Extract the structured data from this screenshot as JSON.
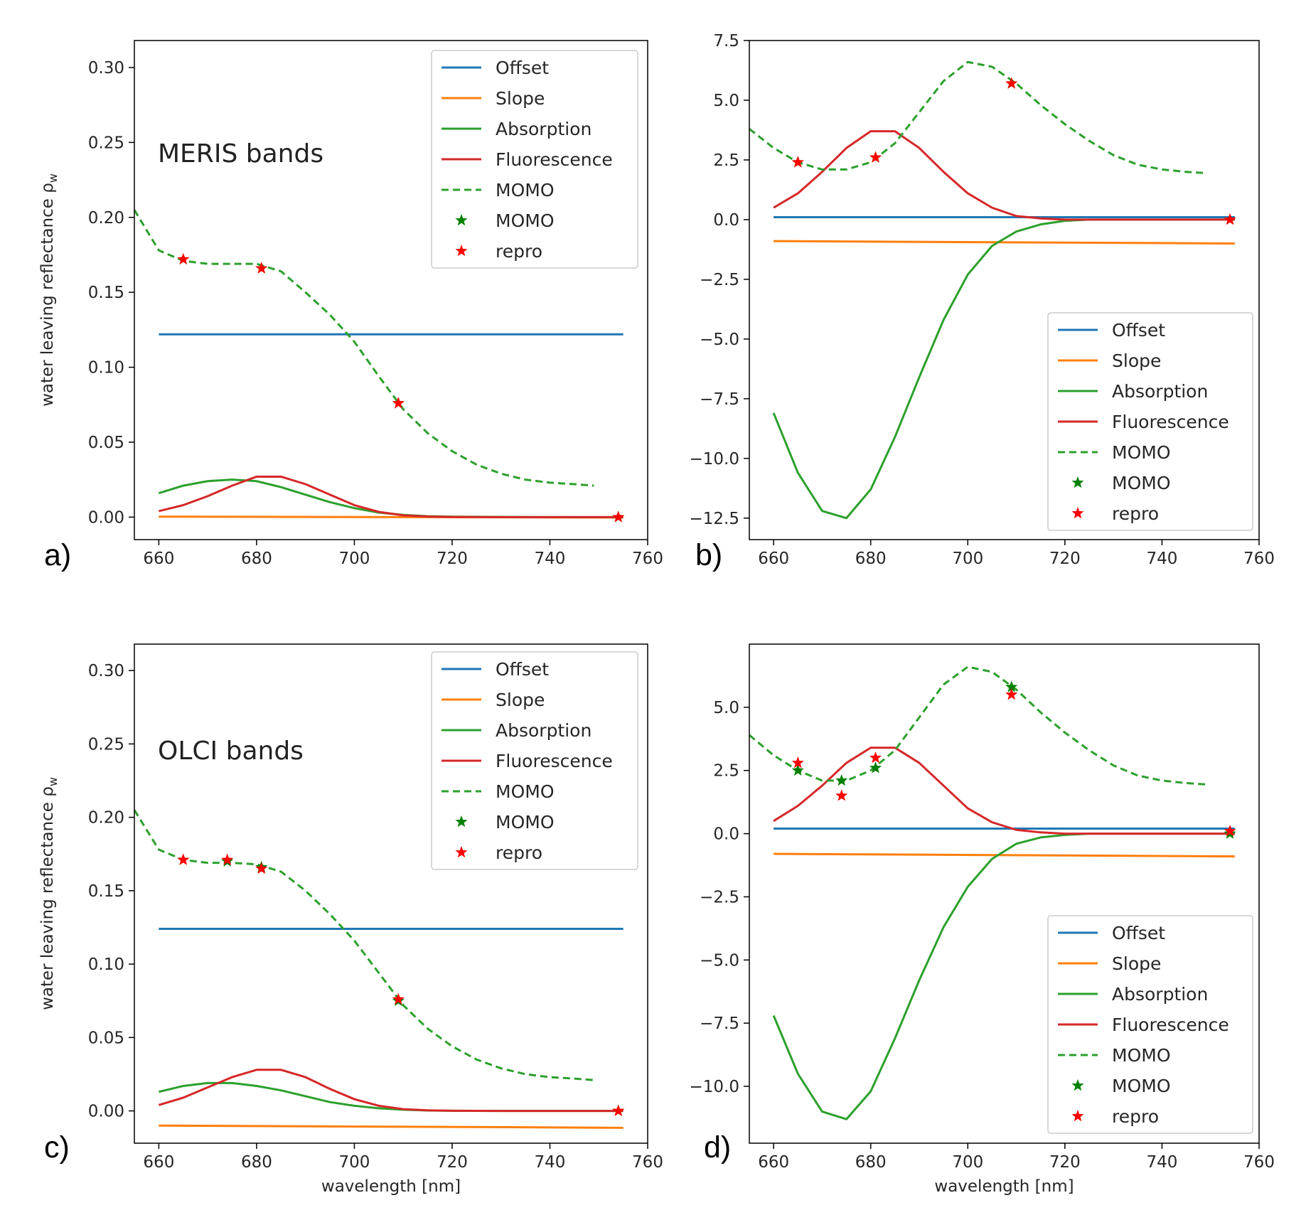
{
  "colors": {
    "offset": "#1f77b4",
    "slope": "#ff7f0e",
    "absorption": "#2ca02c",
    "fluorescence": "#d62728",
    "momo_line": "#2ca02c",
    "momo_star": "#008000",
    "repro_star": "#ff0000",
    "text": "#262626"
  },
  "chart_data": [
    {
      "id": "a",
      "type": "line",
      "panel_letter": "a)",
      "band_label": "MERIS bands",
      "xlabel": "",
      "ylabel": "water leaving reflectance ρ",
      "ylabel_sub": "w",
      "xlim": [
        655,
        760
      ],
      "ylim": [
        -0.015,
        0.318
      ],
      "xticks": [
        660,
        680,
        700,
        720,
        740,
        760
      ],
      "yticks": [
        0.0,
        0.05,
        0.1,
        0.15,
        0.2,
        0.25,
        0.3
      ],
      "ytick_labels": [
        "0.00",
        "0.05",
        "0.10",
        "0.15",
        "0.20",
        "0.25",
        "0.30"
      ],
      "legend": {
        "position": "upper right",
        "entries": [
          {
            "key": "offset",
            "label": "Offset",
            "style": "line"
          },
          {
            "key": "slope",
            "label": "Slope",
            "style": "line"
          },
          {
            "key": "absorption",
            "label": "Absorption",
            "style": "line"
          },
          {
            "key": "fluorescence",
            "label": "Fluorescence",
            "style": "line"
          },
          {
            "key": "momo_line",
            "label": "MOMO",
            "style": "dashed"
          },
          {
            "key": "momo_star",
            "label": "MOMO",
            "style": "star"
          },
          {
            "key": "repro_star",
            "label": "repro",
            "style": "star"
          }
        ]
      },
      "series": [
        {
          "key": "offset",
          "x": [
            660,
            755
          ],
          "y": [
            0.122,
            0.122
          ]
        },
        {
          "key": "slope",
          "x": [
            660,
            755
          ],
          "y": [
            0.0003,
            -0.0003
          ]
        },
        {
          "key": "absorption",
          "x": [
            660,
            665,
            670,
            675,
            680,
            685,
            690,
            695,
            700,
            705,
            710,
            715,
            720,
            730,
            740,
            755
          ],
          "y": [
            0.016,
            0.021,
            0.024,
            0.025,
            0.024,
            0.02,
            0.015,
            0.01,
            0.006,
            0.003,
            0.0015,
            0.0006,
            0.0003,
            0.0001,
            0.0,
            0.0
          ]
        },
        {
          "key": "fluorescence",
          "x": [
            660,
            665,
            670,
            675,
            680,
            685,
            690,
            695,
            700,
            705,
            710,
            715,
            720,
            730,
            740,
            755
          ],
          "y": [
            0.004,
            0.008,
            0.014,
            0.021,
            0.027,
            0.027,
            0.022,
            0.015,
            0.008,
            0.0035,
            0.0012,
            0.0004,
            0.0001,
            0.0,
            0.0,
            0.0
          ]
        },
        {
          "key": "momo_line",
          "x": [
            655,
            660,
            665,
            670,
            675,
            680,
            685,
            690,
            695,
            700,
            705,
            710,
            715,
            720,
            725,
            730,
            735,
            740,
            745,
            749
          ],
          "y": [
            0.205,
            0.178,
            0.171,
            0.169,
            0.169,
            0.169,
            0.164,
            0.15,
            0.135,
            0.117,
            0.094,
            0.072,
            0.056,
            0.044,
            0.035,
            0.029,
            0.025,
            0.023,
            0.022,
            0.021
          ]
        },
        {
          "key": "momo_star",
          "x": [
            665,
            681,
            709,
            754
          ],
          "y": [
            0.172,
            0.166,
            0.076,
            0.0
          ]
        },
        {
          "key": "repro_star",
          "x": [
            665,
            681,
            709,
            754
          ],
          "y": [
            0.172,
            0.166,
            0.076,
            0.0
          ]
        }
      ]
    },
    {
      "id": "b",
      "type": "line",
      "panel_letter": "b)",
      "band_label": "",
      "xlabel": "",
      "ylabel": "",
      "ylabel_sub": "",
      "xlim": [
        655,
        760
      ],
      "ylim": [
        -13.4,
        7.5
      ],
      "xticks": [
        660,
        680,
        700,
        720,
        740,
        760
      ],
      "yticks": [
        -12.5,
        -10.0,
        -7.5,
        -5.0,
        -2.5,
        0.0,
        2.5,
        5.0,
        7.5
      ],
      "ytick_labels": [
        "−12.5",
        "−10.0",
        "−7.5",
        "−5.0",
        "−2.5",
        "0.0",
        "2.5",
        "5.0",
        "7.5"
      ],
      "legend": {
        "position": "lower right",
        "entries": [
          {
            "key": "offset",
            "label": "Offset",
            "style": "line"
          },
          {
            "key": "slope",
            "label": "Slope",
            "style": "line"
          },
          {
            "key": "absorption",
            "label": "Absorption",
            "style": "line"
          },
          {
            "key": "fluorescence",
            "label": "Fluorescence",
            "style": "line"
          },
          {
            "key": "momo_line",
            "label": "MOMO",
            "style": "dashed"
          },
          {
            "key": "momo_star",
            "label": "MOMO",
            "style": "star"
          },
          {
            "key": "repro_star",
            "label": "repro",
            "style": "star"
          }
        ]
      },
      "series": [
        {
          "key": "offset",
          "x": [
            660,
            755
          ],
          "y": [
            0.1,
            0.1
          ]
        },
        {
          "key": "slope",
          "x": [
            660,
            755
          ],
          "y": [
            -0.9,
            -1.0
          ]
        },
        {
          "key": "absorption",
          "x": [
            660,
            665,
            670,
            675,
            680,
            685,
            690,
            695,
            700,
            705,
            710,
            715,
            720,
            725,
            730,
            740,
            755
          ],
          "y": [
            -8.1,
            -10.6,
            -12.2,
            -12.5,
            -11.3,
            -9.1,
            -6.6,
            -4.2,
            -2.3,
            -1.1,
            -0.5,
            -0.2,
            -0.05,
            0.0,
            0.0,
            0.0,
            0.0
          ]
        },
        {
          "key": "fluorescence",
          "x": [
            660,
            665,
            670,
            675,
            680,
            685,
            690,
            695,
            700,
            705,
            710,
            715,
            720,
            730,
            740,
            755
          ],
          "y": [
            0.5,
            1.1,
            2.0,
            3.0,
            3.7,
            3.7,
            3.0,
            2.0,
            1.1,
            0.5,
            0.15,
            0.05,
            0.0,
            0.0,
            0.0,
            0.0
          ]
        },
        {
          "key": "momo_line",
          "x": [
            655,
            660,
            665,
            670,
            675,
            680,
            685,
            690,
            695,
            700,
            705,
            710,
            715,
            720,
            725,
            730,
            735,
            740,
            745,
            749
          ],
          "y": [
            3.8,
            3.0,
            2.4,
            2.1,
            2.1,
            2.4,
            3.2,
            4.5,
            5.8,
            6.6,
            6.4,
            5.7,
            4.8,
            4.0,
            3.3,
            2.7,
            2.3,
            2.1,
            2.0,
            1.95
          ]
        },
        {
          "key": "momo_star",
          "x": [
            665,
            681,
            709,
            754
          ],
          "y": [
            2.4,
            2.6,
            5.7,
            0.0
          ]
        },
        {
          "key": "repro_star",
          "x": [
            665,
            681,
            709,
            754
          ],
          "y": [
            2.4,
            2.6,
            5.7,
            0.0
          ]
        }
      ]
    },
    {
      "id": "c",
      "type": "line",
      "panel_letter": "c)",
      "band_label": "OLCI bands",
      "xlabel": "wavelength [nm]",
      "ylabel": "water leaving reflectance ρ",
      "ylabel_sub": "w",
      "xlim": [
        655,
        760
      ],
      "ylim": [
        -0.022,
        0.318
      ],
      "xticks": [
        660,
        680,
        700,
        720,
        740,
        760
      ],
      "yticks": [
        0.0,
        0.05,
        0.1,
        0.15,
        0.2,
        0.25,
        0.3
      ],
      "ytick_labels": [
        "0.00",
        "0.05",
        "0.10",
        "0.15",
        "0.20",
        "0.25",
        "0.30"
      ],
      "legend": {
        "position": "upper right",
        "entries": [
          {
            "key": "offset",
            "label": "Offset",
            "style": "line"
          },
          {
            "key": "slope",
            "label": "Slope",
            "style": "line"
          },
          {
            "key": "absorption",
            "label": "Absorption",
            "style": "line"
          },
          {
            "key": "fluorescence",
            "label": "Fluorescence",
            "style": "line"
          },
          {
            "key": "momo_line",
            "label": "MOMO",
            "style": "dashed"
          },
          {
            "key": "momo_star",
            "label": "MOMO",
            "style": "star"
          },
          {
            "key": "repro_star",
            "label": "repro",
            "style": "star"
          }
        ]
      },
      "series": [
        {
          "key": "offset",
          "x": [
            660,
            755
          ],
          "y": [
            0.124,
            0.124
          ]
        },
        {
          "key": "slope",
          "x": [
            660,
            755
          ],
          "y": [
            -0.01,
            -0.0115
          ]
        },
        {
          "key": "absorption",
          "x": [
            660,
            665,
            670,
            675,
            680,
            685,
            690,
            695,
            700,
            705,
            710,
            715,
            720,
            730,
            740,
            755
          ],
          "y": [
            0.013,
            0.017,
            0.019,
            0.019,
            0.017,
            0.014,
            0.01,
            0.006,
            0.0035,
            0.0018,
            0.0008,
            0.0003,
            0.0001,
            0.0,
            0.0,
            0.0
          ]
        },
        {
          "key": "fluorescence",
          "x": [
            660,
            665,
            670,
            675,
            680,
            685,
            690,
            695,
            700,
            705,
            710,
            715,
            720,
            730,
            740,
            755
          ],
          "y": [
            0.004,
            0.009,
            0.016,
            0.023,
            0.028,
            0.028,
            0.023,
            0.015,
            0.008,
            0.0035,
            0.0012,
            0.0004,
            0.0001,
            0.0,
            0.0,
            0.0
          ]
        },
        {
          "key": "momo_line",
          "x": [
            655,
            660,
            665,
            670,
            675,
            680,
            685,
            690,
            695,
            700,
            705,
            710,
            715,
            720,
            725,
            730,
            735,
            740,
            745,
            749
          ],
          "y": [
            0.205,
            0.178,
            0.171,
            0.169,
            0.169,
            0.168,
            0.163,
            0.15,
            0.134,
            0.116,
            0.094,
            0.072,
            0.056,
            0.044,
            0.035,
            0.029,
            0.025,
            0.023,
            0.022,
            0.021
          ]
        },
        {
          "key": "momo_star",
          "x": [
            665,
            674,
            681,
            709,
            754
          ],
          "y": [
            0.171,
            0.17,
            0.166,
            0.075,
            0.0
          ]
        },
        {
          "key": "repro_star",
          "x": [
            665,
            674,
            681,
            709,
            754
          ],
          "y": [
            0.171,
            0.171,
            0.165,
            0.076,
            0.0
          ]
        }
      ]
    },
    {
      "id": "d",
      "type": "line",
      "panel_letter": "d)",
      "band_label": "",
      "xlabel": "wavelength [nm]",
      "ylabel": "",
      "ylabel_sub": "",
      "xlim": [
        655,
        760
      ],
      "ylim": [
        -12.25,
        7.5
      ],
      "xticks": [
        660,
        680,
        700,
        720,
        740,
        760
      ],
      "yticks": [
        -10.0,
        -7.5,
        -5.0,
        -2.5,
        0.0,
        2.5,
        5.0
      ],
      "ytick_labels": [
        "−10.0",
        "−7.5",
        "−5.0",
        "−2.5",
        "0.0",
        "2.5",
        "5.0"
      ],
      "legend": {
        "position": "lower right",
        "entries": [
          {
            "key": "offset",
            "label": "Offset",
            "style": "line"
          },
          {
            "key": "slope",
            "label": "Slope",
            "style": "line"
          },
          {
            "key": "absorption",
            "label": "Absorption",
            "style": "line"
          },
          {
            "key": "fluorescence",
            "label": "Fluorescence",
            "style": "line"
          },
          {
            "key": "momo_line",
            "label": "MOMO",
            "style": "dashed"
          },
          {
            "key": "momo_star",
            "label": "MOMO",
            "style": "star"
          },
          {
            "key": "repro_star",
            "label": "repro",
            "style": "star"
          }
        ]
      },
      "series": [
        {
          "key": "offset",
          "x": [
            660,
            755
          ],
          "y": [
            0.2,
            0.2
          ]
        },
        {
          "key": "slope",
          "x": [
            660,
            755
          ],
          "y": [
            -0.8,
            -0.9
          ]
        },
        {
          "key": "absorption",
          "x": [
            660,
            665,
            670,
            675,
            680,
            685,
            690,
            695,
            700,
            705,
            710,
            715,
            720,
            725,
            730,
            740,
            755
          ],
          "y": [
            -7.2,
            -9.5,
            -11.0,
            -11.3,
            -10.2,
            -8.1,
            -5.8,
            -3.7,
            -2.1,
            -1.0,
            -0.4,
            -0.15,
            -0.05,
            0.0,
            0.0,
            0.0,
            0.0
          ]
        },
        {
          "key": "fluorescence",
          "x": [
            660,
            665,
            670,
            675,
            680,
            685,
            690,
            695,
            700,
            705,
            710,
            715,
            720,
            730,
            740,
            755
          ],
          "y": [
            0.5,
            1.1,
            1.9,
            2.8,
            3.4,
            3.4,
            2.8,
            1.9,
            1.0,
            0.45,
            0.15,
            0.05,
            0.0,
            0.0,
            0.0,
            0.0
          ]
        },
        {
          "key": "momo_line",
          "x": [
            655,
            660,
            665,
            670,
            675,
            680,
            685,
            690,
            695,
            700,
            705,
            710,
            715,
            720,
            725,
            730,
            735,
            740,
            745,
            749
          ],
          "y": [
            3.9,
            3.1,
            2.5,
            2.1,
            2.1,
            2.5,
            3.3,
            4.6,
            5.9,
            6.6,
            6.4,
            5.7,
            4.8,
            4.0,
            3.3,
            2.7,
            2.3,
            2.1,
            2.0,
            1.95
          ]
        },
        {
          "key": "momo_star",
          "x": [
            665,
            674,
            681,
            709,
            754
          ],
          "y": [
            2.5,
            2.1,
            2.6,
            5.8,
            0.0
          ]
        },
        {
          "key": "repro_star",
          "x": [
            665,
            674,
            681,
            709,
            754
          ],
          "y": [
            2.8,
            1.5,
            3.0,
            5.5,
            0.1
          ]
        }
      ]
    }
  ]
}
